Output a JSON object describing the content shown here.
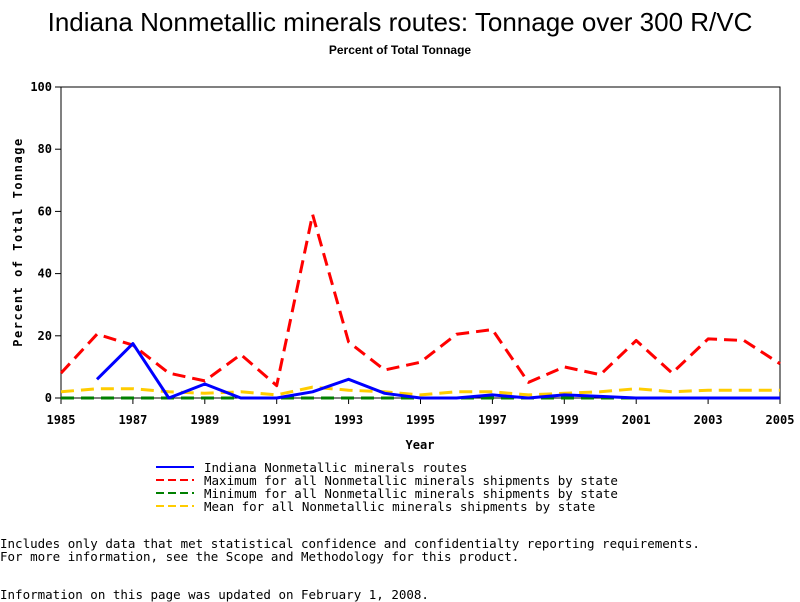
{
  "chart_data": {
    "type": "line",
    "title": "Indiana Nonmetallic minerals routes: Tonnage over 300 R/VC",
    "subtitle": "Percent of Total Tonnage",
    "xlabel": "Year",
    "ylabel": "Percent of Total Tonnage",
    "xlim": [
      1985,
      2005
    ],
    "ylim": [
      0,
      100
    ],
    "x_ticks": [
      "1985",
      "1987",
      "1989",
      "1991",
      "1993",
      "1995",
      "1997",
      "1999",
      "2001",
      "2003",
      "2005"
    ],
    "y_ticks": [
      "0",
      "20",
      "40",
      "60",
      "80",
      "100"
    ],
    "grid": false,
    "legend_position": "bottom",
    "series": [
      {
        "name": "Indiana Nonmetallic minerals routes",
        "color": "#0000ff",
        "dash": "solid",
        "x": [
          1986,
          1987,
          1988,
          1989,
          1990,
          1991,
          1992,
          1993,
          1994,
          1995,
          1996,
          1997,
          1998,
          1999,
          2000,
          2001,
          2002,
          2003,
          2004,
          2005
        ],
        "y": [
          6,
          17.5,
          0,
          4.5,
          0,
          0,
          2,
          6,
          1.5,
          0,
          0,
          1,
          0,
          1,
          0.5,
          0,
          0,
          0,
          0,
          0
        ]
      },
      {
        "name": "Maximum for all Nonmetallic minerals shipments by state",
        "color": "#ff0000",
        "dash": "dash",
        "x": [
          1985,
          1986,
          1987,
          1988,
          1989,
          1990,
          1991,
          1992,
          1993,
          1994,
          1995,
          1996,
          1997,
          1998,
          1999,
          2000,
          2001,
          2002,
          2003,
          2004,
          2005
        ],
        "y": [
          8,
          20.5,
          17,
          8,
          5.5,
          14,
          4,
          59,
          18,
          9,
          11.5,
          20.5,
          22,
          5,
          10,
          7.5,
          18.5,
          8,
          19,
          18.5,
          11
        ]
      },
      {
        "name": "Minimum for all Nonmetallic minerals shipments by state",
        "color": "#008000",
        "dash": "dash",
        "x": [
          1985,
          1986,
          1987,
          1988,
          1989,
          1990,
          1991,
          1992,
          1993,
          1994,
          1995,
          1996,
          1997,
          1998,
          1999,
          2000,
          2001,
          2002,
          2003,
          2004,
          2005
        ],
        "y": [
          0,
          0,
          0,
          0,
          0,
          0,
          0,
          0,
          0,
          0,
          0,
          0,
          0,
          0,
          0,
          0,
          0,
          0,
          0,
          0,
          0
        ]
      },
      {
        "name": "Mean for all Nonmetallic minerals shipments by state",
        "color": "#ffcc00",
        "dash": "dash",
        "x": [
          1985,
          1986,
          1987,
          1988,
          1989,
          1990,
          1991,
          1992,
          1993,
          1994,
          1995,
          1996,
          1997,
          1998,
          1999,
          2000,
          2001,
          2002,
          2003,
          2004,
          2005
        ],
        "y": [
          2,
          3,
          3,
          2,
          1.5,
          2,
          1,
          3.5,
          2.5,
          2,
          1,
          2,
          2,
          1,
          1.5,
          2,
          3,
          2,
          2.5,
          2.5,
          2.5
        ]
      }
    ]
  },
  "notes": {
    "line1": "Includes only data that met statistical confidence and confidentialty reporting requirements.",
    "line2": "For more information, see the Scope and Methodology for this product.",
    "updated": "Information on this page was updated on February 1, 2008."
  }
}
